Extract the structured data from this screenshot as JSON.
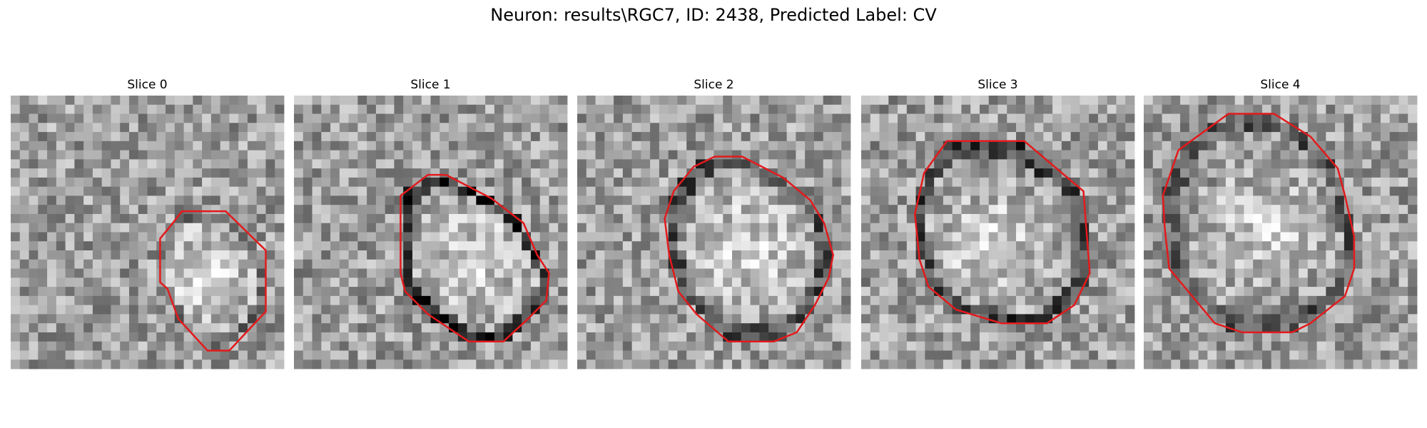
{
  "title": "Neuron: results\\RGC7, ID: 2438, Predicted Label: CV",
  "panels": [
    {
      "title": "Slice 0"
    },
    {
      "title": "Slice 1"
    },
    {
      "title": "Slice 2"
    },
    {
      "title": "Slice 3"
    },
    {
      "title": "Slice 4"
    }
  ]
}
